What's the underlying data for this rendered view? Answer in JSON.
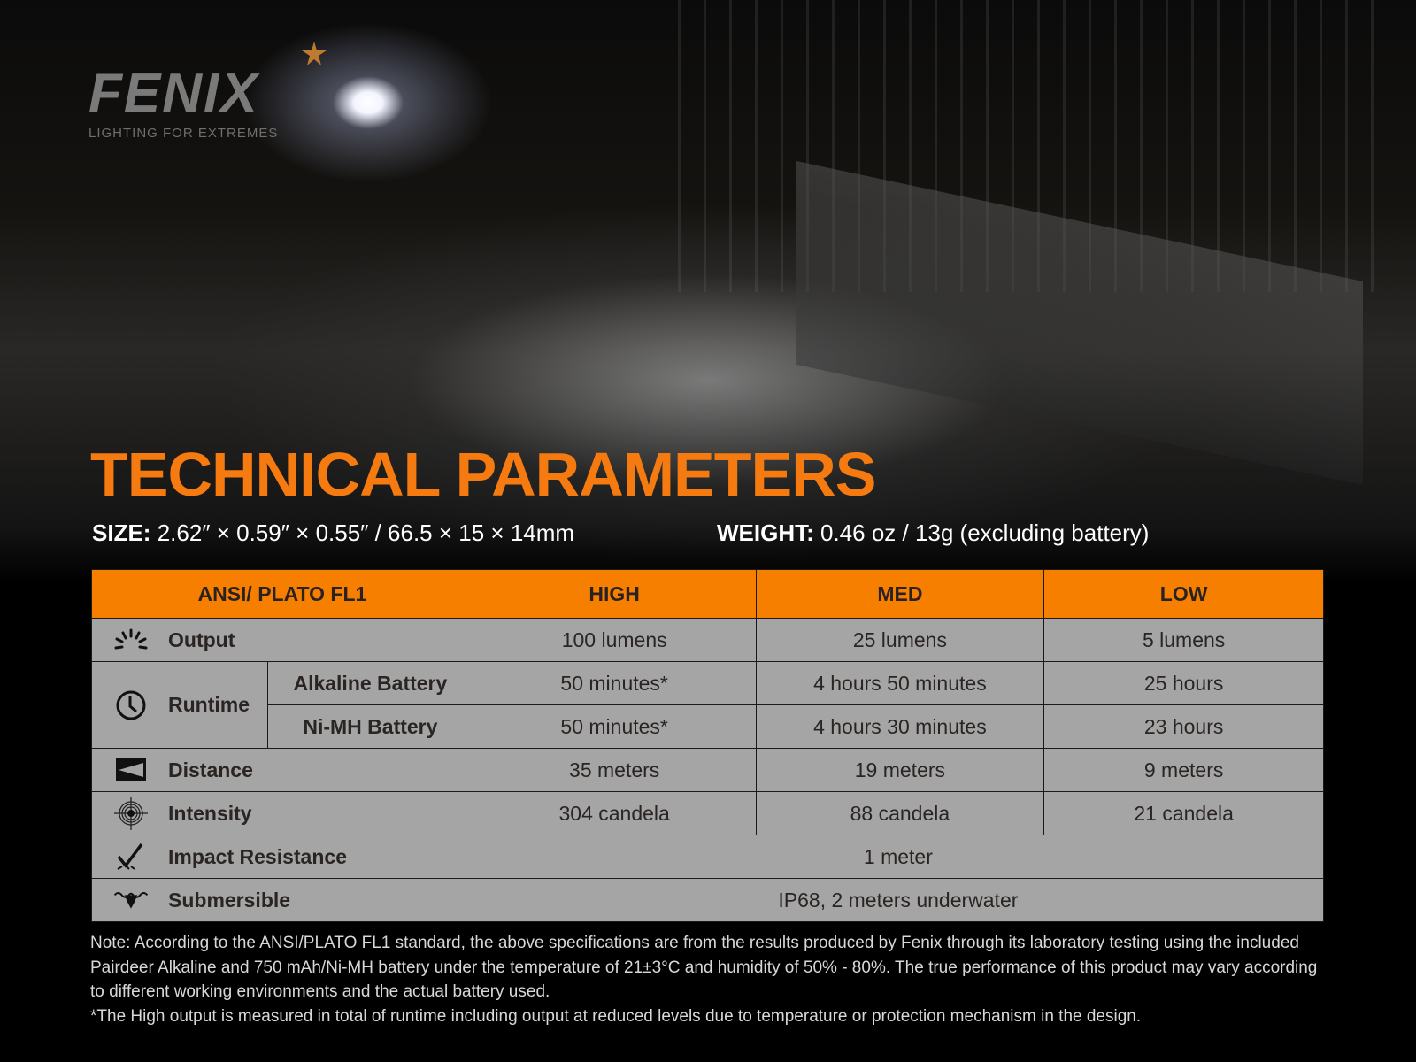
{
  "brand": {
    "name": "FENIX",
    "tagline": "LIGHTING FOR EXTREMES"
  },
  "title": "TECHNICAL PARAMETERS",
  "size": {
    "label": "SIZE:",
    "value": "2.62″ × 0.59″ × 0.55″ / 66.5 × 15 × 14mm"
  },
  "weight": {
    "label": "WEIGHT:",
    "value": "0.46 oz / 13g (excluding battery)"
  },
  "table": {
    "headers": [
      "ANSI/ PLATO  FL1",
      "HIGH",
      "MED",
      "LOW"
    ],
    "output": {
      "label": "Output",
      "icon": "light-burst-icon",
      "values": [
        "100 lumens",
        "25 lumens",
        "5 lumens"
      ]
    },
    "runtime": {
      "label": "Runtime",
      "icon": "clock-icon",
      "alkaline": {
        "label": "Alkaline Battery",
        "values": [
          "50 minutes*",
          "4 hours 50 minutes",
          "25 hours"
        ]
      },
      "nimh": {
        "label": "Ni-MH Battery",
        "values": [
          "50 minutes*",
          "4 hours 30 minutes",
          "23 hours"
        ]
      }
    },
    "distance": {
      "label": "Distance",
      "icon": "beam-distance-icon",
      "values": [
        "35 meters",
        "19 meters",
        "9 meters"
      ]
    },
    "intensity": {
      "label": "Intensity",
      "icon": "target-icon",
      "values": [
        "304 candela",
        "88 candela",
        "21 candela"
      ]
    },
    "impact": {
      "label": "Impact Resistance",
      "icon": "impact-icon",
      "value": "1 meter"
    },
    "submersible": {
      "label": "Submersible",
      "icon": "water-icon",
      "value": "IP68, 2 meters underwater"
    }
  },
  "notes": [
    "Note: According to the ANSI/PLATO FL1 standard, the above specifications are from the results produced by Fenix through its laboratory testing using the included Pairdeer Alkaline and 750 mAh/Ni-MH battery under the temperature of 21±3°C and humidity of 50% - 80%. The true performance of this product may vary according to different working environments and the actual battery used.",
    "*The High output is measured in total of runtime including output at reduced levels due to temperature or protection mechanism in the design."
  ],
  "colors": {
    "accent": "#f77f00",
    "cell": "#a5a5a5",
    "title": "#f57a10"
  }
}
